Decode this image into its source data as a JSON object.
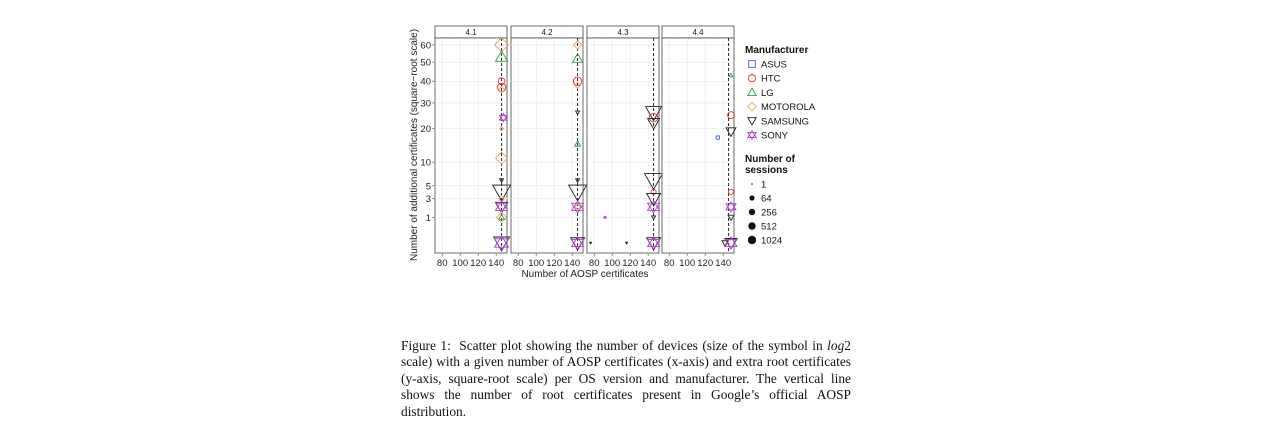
{
  "chart_data": {
    "type": "scatter",
    "facet_labels": [
      "4.1",
      "4.2",
      "4.3",
      "4.4"
    ],
    "xlabel": "Number of AOSP certificates",
    "ylabel": "Number of additional certificates (square−root scale)",
    "x_ticks": [
      "80",
      "100",
      "120",
      "140"
    ],
    "y_ticks": [
      "1",
      "3",
      "5",
      "10",
      "20",
      "30",
      "40",
      "50",
      "60"
    ],
    "y_scale": "sqrt",
    "xlim": [
      72,
      152
    ],
    "ylim": [
      0,
      63
    ],
    "reference_line_x": 146,
    "legend": {
      "manufacturer_title": "Manufacturer",
      "manufacturers": [
        {
          "name": "ASUS",
          "color": "#3b5bdb",
          "shape": "square"
        },
        {
          "name": "HTC",
          "color": "#e03131",
          "shape": "circle"
        },
        {
          "name": "LG",
          "color": "#2f9e44",
          "shape": "triangle"
        },
        {
          "name": "MOTOROLA",
          "color": "#e8a05c",
          "shape": "diamond"
        },
        {
          "name": "SAMSUNG",
          "color": "#222222",
          "shape": "triangle-down"
        },
        {
          "name": "SONY",
          "color": "#ae3ec9",
          "shape": "star"
        }
      ],
      "sessions_title_line1": "Number of",
      "sessions_title_line2": "sessions",
      "sessions": [
        "1",
        "64",
        "256",
        "512",
        "1024"
      ]
    },
    "series": [
      {
        "facet": "4.1",
        "points": [
          {
            "x": 146,
            "y": 60,
            "m": "MOTOROLA",
            "s": 7
          },
          {
            "x": 146,
            "y": 53,
            "m": "LG",
            "s": 6
          },
          {
            "x": 146,
            "y": 40,
            "m": "HTC",
            "s": 4
          },
          {
            "x": 146,
            "y": 37,
            "m": "HTC",
            "s": 5
          },
          {
            "x": 146,
            "y": 36,
            "m": "MOTOROLA",
            "s": 3
          },
          {
            "x": 148,
            "y": 24,
            "m": "SONY",
            "s": 4
          },
          {
            "x": 146,
            "y": 20,
            "m": "MOTOROLA",
            "s": 2
          },
          {
            "x": 146,
            "y": 11,
            "m": "MOTOROLA",
            "s": 6
          },
          {
            "x": 146,
            "y": 6,
            "m": "SAMSUNG",
            "s": 2
          },
          {
            "x": 146,
            "y": 4,
            "m": "SAMSUNG",
            "s": 9
          },
          {
            "x": 146,
            "y": 3,
            "m": "MOTOROLA",
            "s": 3
          },
          {
            "x": 146,
            "y": 2,
            "m": "SAMSUNG",
            "s": 6
          },
          {
            "x": 146,
            "y": 2,
            "m": "SONY",
            "s": 6
          },
          {
            "x": 146,
            "y": 1,
            "m": "MOTOROLA",
            "s": 5
          },
          {
            "x": 146,
            "y": 1,
            "m": "LG",
            "s": 3
          },
          {
            "x": 146,
            "y": 0,
            "m": "SAMSUNG",
            "s": 8
          },
          {
            "x": 146,
            "y": 0,
            "m": "SONY",
            "s": 7
          }
        ]
      },
      {
        "facet": "4.2",
        "points": [
          {
            "x": 146,
            "y": 60,
            "m": "MOTOROLA",
            "s": 4
          },
          {
            "x": 146,
            "y": 52,
            "m": "LG",
            "s": 5
          },
          {
            "x": 146,
            "y": 40,
            "m": "HTC",
            "s": 5
          },
          {
            "x": 146,
            "y": 38,
            "m": "MOTOROLA",
            "s": 3
          },
          {
            "x": 146,
            "y": 26,
            "m": "SAMSUNG",
            "s": 2
          },
          {
            "x": 146,
            "y": 15,
            "m": "LG",
            "s": 3
          },
          {
            "x": 146,
            "y": 6,
            "m": "SAMSUNG",
            "s": 2
          },
          {
            "x": 146,
            "y": 4,
            "m": "SAMSUNG",
            "s": 9
          },
          {
            "x": 146,
            "y": 2,
            "m": "SONY",
            "s": 6
          },
          {
            "x": 146,
            "y": 2,
            "m": "MOTOROLA",
            "s": 3
          },
          {
            "x": 146,
            "y": 0,
            "m": "SAMSUNG",
            "s": 7
          },
          {
            "x": 146,
            "y": 0,
            "m": "SONY",
            "s": 6
          }
        ]
      },
      {
        "facet": "4.3",
        "points": [
          {
            "x": 146,
            "y": 26,
            "m": "SAMSUNG",
            "s": 8
          },
          {
            "x": 146,
            "y": 24,
            "m": "HTC",
            "s": 5
          },
          {
            "x": 146,
            "y": 22,
            "m": "SAMSUNG",
            "s": 6
          },
          {
            "x": 146,
            "y": 6,
            "m": "SAMSUNG",
            "s": 9
          },
          {
            "x": 146,
            "y": 4,
            "m": "HTC",
            "s": 3
          },
          {
            "x": 146,
            "y": 3,
            "m": "SAMSUNG",
            "s": 7
          },
          {
            "x": 146,
            "y": 2,
            "m": "SONY",
            "s": 6
          },
          {
            "x": 146,
            "y": 1,
            "m": "SAMSUNG",
            "s": 2
          },
          {
            "x": 92,
            "y": 1,
            "m": "SONY",
            "s": 1
          },
          {
            "x": 76,
            "y": 0,
            "m": "SAMSUNG",
            "s": 1
          },
          {
            "x": 116,
            "y": 0,
            "m": "SAMSUNG",
            "s": 1
          },
          {
            "x": 146,
            "y": 0,
            "m": "SAMSUNG",
            "s": 7
          },
          {
            "x": 146,
            "y": 0,
            "m": "SONY",
            "s": 6
          }
        ]
      },
      {
        "facet": "4.4",
        "points": [
          {
            "x": 150,
            "y": 43,
            "m": "LG",
            "s": 2
          },
          {
            "x": 150,
            "y": 25,
            "m": "HTC",
            "s": 4
          },
          {
            "x": 150,
            "y": 19,
            "m": "SAMSUNG",
            "s": 5
          },
          {
            "x": 134,
            "y": 17,
            "m": "ASUS",
            "s": 2
          },
          {
            "x": 150,
            "y": 4,
            "m": "HTC",
            "s": 3
          },
          {
            "x": 150,
            "y": 2,
            "m": "SONY",
            "s": 5
          },
          {
            "x": 150,
            "y": 1,
            "m": "SAMSUNG",
            "s": 3
          },
          {
            "x": 142,
            "y": 0,
            "m": "SAMSUNG",
            "s": 3
          },
          {
            "x": 150,
            "y": 0,
            "m": "SAMSUNG",
            "s": 6
          },
          {
            "x": 150,
            "y": 0,
            "m": "SONY",
            "s": 6
          }
        ]
      }
    ]
  },
  "caption": {
    "label": "Figure 1:",
    "text_before": "Scatter plot showing the number of devices (size of the symbol in ",
    "math": "log",
    "text_after": "2 scale) with a given number of AOSP certificates (x-axis) and extra root certificates (y-axis, square-root scale) per OS version and manufacturer. The vertical line shows the number of root certificates present in Google’s official AOSP distribution."
  }
}
